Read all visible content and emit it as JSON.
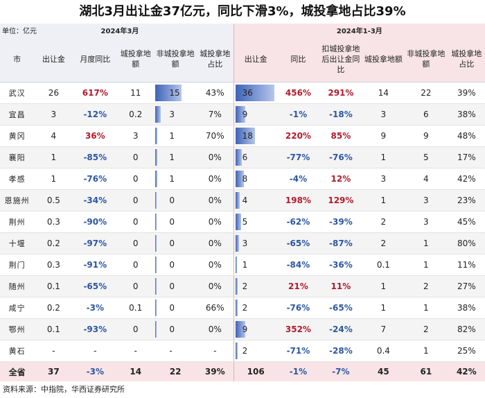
{
  "title": "湖北3月出让金37亿元，同比下滑3%，城投拿地占比39%",
  "unit_label": "单位：亿元",
  "period_left": "2024年3月",
  "period_right": "2024年1-3月",
  "headers": {
    "city": "市",
    "m_sale": "出让金",
    "m_yoy": "月度同比",
    "m_ct": "城投拿地额",
    "m_nonct": "非城投拿地额",
    "m_ratio": "城投拿地占比",
    "q_sale": "出让金",
    "q_yoy": "同比",
    "q_yoy_ex": "扣城投拿地后出让金同比",
    "q_ct": "城投拿地额",
    "q_nonct": "非城投拿地额",
    "q_ratio": "城投拿地占比"
  },
  "bar_scale": {
    "m_nonct_max": 22,
    "q_sale_max": 36
  },
  "rows": [
    {
      "city": "武汉",
      "m_sale": "26",
      "m_yoy": "617%",
      "m_ct": "11",
      "m_nonct": "15",
      "m_nonct_v": 15,
      "m_ratio": "43%",
      "q_sale": "36",
      "q_sale_v": 36,
      "q_yoy": "456%",
      "q_yoy_ex": "291%",
      "q_ct": "14",
      "q_nonct": "22",
      "q_ratio": "39%"
    },
    {
      "city": "宜昌",
      "m_sale": "3",
      "m_yoy": "-12%",
      "m_ct": "0.2",
      "m_nonct": "3",
      "m_nonct_v": 3,
      "m_ratio": "7%",
      "q_sale": "9",
      "q_sale_v": 9,
      "q_yoy": "-1%",
      "q_yoy_ex": "-18%",
      "q_ct": "3",
      "q_nonct": "6",
      "q_ratio": "38%"
    },
    {
      "city": "黄冈",
      "m_sale": "4",
      "m_yoy": "36%",
      "m_ct": "3",
      "m_nonct": "1",
      "m_nonct_v": 1,
      "m_ratio": "70%",
      "q_sale": "18",
      "q_sale_v": 18,
      "q_yoy": "220%",
      "q_yoy_ex": "85%",
      "q_ct": "9",
      "q_nonct": "9",
      "q_ratio": "48%"
    },
    {
      "city": "襄阳",
      "m_sale": "1",
      "m_yoy": "-85%",
      "m_ct": "0",
      "m_nonct": "1",
      "m_nonct_v": 1,
      "m_ratio": "0%",
      "q_sale": "6",
      "q_sale_v": 6,
      "q_yoy": "-77%",
      "q_yoy_ex": "-76%",
      "q_ct": "1",
      "q_nonct": "5",
      "q_ratio": "17%"
    },
    {
      "city": "孝感",
      "m_sale": "1",
      "m_yoy": "-76%",
      "m_ct": "0",
      "m_nonct": "1",
      "m_nonct_v": 1,
      "m_ratio": "0%",
      "q_sale": "8",
      "q_sale_v": 8,
      "q_yoy": "-4%",
      "q_yoy_ex": "12%",
      "q_ct": "3",
      "q_nonct": "4",
      "q_ratio": "42%"
    },
    {
      "city": "恩施州",
      "m_sale": "0.5",
      "m_yoy": "-34%",
      "m_ct": "0",
      "m_nonct": "0",
      "m_nonct_v": 0.5,
      "m_ratio": "0%",
      "q_sale": "4",
      "q_sale_v": 4,
      "q_yoy": "198%",
      "q_yoy_ex": "129%",
      "q_ct": "1",
      "q_nonct": "3",
      "q_ratio": "23%"
    },
    {
      "city": "荆州",
      "m_sale": "0.3",
      "m_yoy": "-90%",
      "m_ct": "0",
      "m_nonct": "0",
      "m_nonct_v": 0.3,
      "m_ratio": "0%",
      "q_sale": "5",
      "q_sale_v": 5,
      "q_yoy": "-62%",
      "q_yoy_ex": "-39%",
      "q_ct": "2",
      "q_nonct": "3",
      "q_ratio": "45%"
    },
    {
      "city": "十堰",
      "m_sale": "0.2",
      "m_yoy": "-97%",
      "m_ct": "0",
      "m_nonct": "0",
      "m_nonct_v": 0.2,
      "m_ratio": "0%",
      "q_sale": "3",
      "q_sale_v": 3,
      "q_yoy": "-65%",
      "q_yoy_ex": "-87%",
      "q_ct": "2",
      "q_nonct": "1",
      "q_ratio": "80%"
    },
    {
      "city": "荆门",
      "m_sale": "0.3",
      "m_yoy": "-91%",
      "m_ct": "0",
      "m_nonct": "0",
      "m_nonct_v": 0.3,
      "m_ratio": "0%",
      "q_sale": "1",
      "q_sale_v": 1,
      "q_yoy": "-84%",
      "q_yoy_ex": "-36%",
      "q_ct": "0.1",
      "q_nonct": "1",
      "q_ratio": "11%"
    },
    {
      "city": "随州",
      "m_sale": "0.1",
      "m_yoy": "-65%",
      "m_ct": "0",
      "m_nonct": "0",
      "m_nonct_v": 0.1,
      "m_ratio": "0%",
      "q_sale": "2",
      "q_sale_v": 2,
      "q_yoy": "21%",
      "q_yoy_ex": "11%",
      "q_ct": "1",
      "q_nonct": "2",
      "q_ratio": "27%"
    },
    {
      "city": "咸宁",
      "m_sale": "0.2",
      "m_yoy": "-3%",
      "m_ct": "0.1",
      "m_nonct": "0",
      "m_nonct_v": 0.1,
      "m_ratio": "66%",
      "q_sale": "2",
      "q_sale_v": 2,
      "q_yoy": "-76%",
      "q_yoy_ex": "-65%",
      "q_ct": "1",
      "q_nonct": "1",
      "q_ratio": "38%"
    },
    {
      "city": "鄂州",
      "m_sale": "0.1",
      "m_yoy": "-93%",
      "m_ct": "0",
      "m_nonct": "0",
      "m_nonct_v": 0.1,
      "m_ratio": "0%",
      "q_sale": "9",
      "q_sale_v": 9,
      "q_yoy": "352%",
      "q_yoy_ex": "-24%",
      "q_ct": "7",
      "q_nonct": "2",
      "q_ratio": "82%"
    },
    {
      "city": "黄石",
      "m_sale": "-",
      "m_yoy": "-",
      "m_ct": "-",
      "m_nonct": "-",
      "m_nonct_v": 0,
      "m_ratio": "-",
      "q_sale": "2",
      "q_sale_v": 2,
      "q_yoy": "-71%",
      "q_yoy_ex": "-28%",
      "q_ct": "0.4",
      "q_nonct": "1",
      "q_ratio": "25%"
    }
  ],
  "total": {
    "city": "全省",
    "m_sale": "37",
    "m_yoy": "-3%",
    "m_ct": "14",
    "m_nonct": "22",
    "m_ratio": "39%",
    "q_sale": "106",
    "q_yoy": "-1%",
    "q_yoy_ex": "-7%",
    "q_ct": "45",
    "q_nonct": "61",
    "q_ratio": "42%"
  },
  "source": "资料来源：中指院，华西证券研究所"
}
